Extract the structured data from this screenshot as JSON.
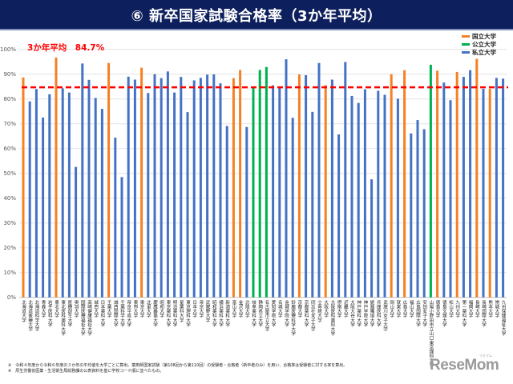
{
  "header": {
    "title": "⑥ 新卒国家試験合格率（3か年平均）"
  },
  "average_label": "3か年平均　84.7%",
  "legend": [
    {
      "name": "国立大学",
      "color": "#f58025"
    },
    {
      "name": "公立大学",
      "color": "#00b050"
    },
    {
      "name": "私立大学",
      "color": "#4472c4"
    }
  ],
  "chart_data": {
    "type": "bar",
    "title": "⑥ 新卒国家試験合格率（3か年平均）",
    "xlabel": "",
    "ylabel": "",
    "ylim": [
      0,
      100
    ],
    "yticks": [
      "0%",
      "10%",
      "20%",
      "30%",
      "40%",
      "50%",
      "60%",
      "70%",
      "80%",
      "90%",
      "100%"
    ],
    "grid": true,
    "legend_position": "top-right",
    "reference_line": {
      "value": 84.7,
      "label": "3か年平均　84.7%",
      "color": "#ff0000",
      "style": "dashed"
    },
    "categories": [
      "北海道大学",
      "北海道医療大学",
      "北海道科学大学",
      "青森大学",
      "岩手医科大学",
      "東北大学",
      "東北医科薬科大学",
      "医療創生大学",
      "奥羽大学",
      "国際医療福祉大学",
      "高崎健康福祉大学",
      "城西大学",
      "日本薬科大学",
      "千葉大学",
      "城西国際大学",
      "千葉科学大学",
      "帝京平成大学",
      "東邦大学",
      "東京大学",
      "北里大学",
      "慶應義塾大学",
      "昭和大学",
      "東京薬科大学",
      "明治薬科大学",
      "星薬科大学",
      "東京理科大学",
      "日本大学",
      "帝京大学",
      "武蔵野大学",
      "昭和薬科大学",
      "横浜薬科大学",
      "新潟薬科大学",
      "富山大学",
      "金沢大学",
      "北陸大学",
      "岐阜薬科大学",
      "静岡県立大学",
      "名古屋市立大学",
      "愛知学院大学",
      "名城大学",
      "金城学院大学",
      "鈴鹿医療科学大学",
      "京都大学",
      "京都薬科大学",
      "同志社女子大学",
      "立命館大学",
      "大阪大学",
      "大阪医科薬科大学",
      "摂南大学",
      "近畿大学",
      "大阪大谷大学",
      "神戸薬科大学",
      "神戸学院大学",
      "姫路獨協大学",
      "兵庫医科大学",
      "武庫川女子大学",
      "岡山大学",
      "就実大学",
      "広島大学",
      "福山大学",
      "広島国際大学",
      "安田女子大学",
      "山陽小野田市立山口東京理科大学",
      "徳島大学",
      "徳島文理大学",
      "松山大学",
      "九州大学",
      "第一薬科大学",
      "福岡大学",
      "長崎大学",
      "長崎国際大学",
      "熊本大学",
      "崇城大学",
      "九州保健福祉大学"
    ],
    "types": [
      "国立",
      "私立",
      "私立",
      "私立",
      "私立",
      "国立",
      "私立",
      "私立",
      "私立",
      "私立",
      "私立",
      "私立",
      "私立",
      "国立",
      "私立",
      "私立",
      "私立",
      "私立",
      "国立",
      "私立",
      "私立",
      "私立",
      "私立",
      "私立",
      "私立",
      "私立",
      "私立",
      "私立",
      "私立",
      "私立",
      "私立",
      "私立",
      "国立",
      "国立",
      "私立",
      "公立",
      "公立",
      "公立",
      "私立",
      "私立",
      "私立",
      "私立",
      "国立",
      "私立",
      "私立",
      "私立",
      "国立",
      "私立",
      "私立",
      "私立",
      "私立",
      "私立",
      "私立",
      "私立",
      "私立",
      "私立",
      "国立",
      "私立",
      "国立",
      "私立",
      "私立",
      "私立",
      "公立",
      "国立",
      "私立",
      "私立",
      "国立",
      "私立",
      "私立",
      "国立",
      "私立",
      "国立",
      "私立",
      "私立"
    ],
    "values": [
      88.7,
      79.0,
      84.0,
      72.5,
      81.9,
      96.7,
      84.3,
      82.6,
      52.6,
      94.3,
      87.7,
      80.4,
      76.0,
      94.5,
      64.4,
      48.5,
      89.0,
      87.8,
      92.6,
      82.4,
      90.0,
      88.4,
      91.1,
      82.6,
      88.9,
      74.7,
      87.5,
      88.5,
      89.8,
      89.9,
      86.3,
      69.1,
      88.4,
      91.7,
      68.7,
      84.9,
      91.7,
      92.9,
      85.5,
      84.9,
      96.0,
      72.4,
      89.9,
      89.6,
      74.8,
      94.5,
      85.6,
      87.8,
      65.7,
      94.9,
      81.2,
      78.4,
      83.9,
      47.6,
      83.3,
      81.7,
      90.0,
      80.1,
      91.6,
      66.1,
      71.5,
      67.8,
      93.8,
      91.4,
      86.6,
      79.5,
      90.9,
      88.9,
      91.6,
      96.2,
      84.1,
      84.1,
      88.5,
      88.2
    ]
  },
  "notes": [
    "※　令和４年度から令和６年度の３か年の平均値を大学ごとに算出。薬剤師国家試験（第108回から第110回）の受験者・合格者（新卒者のみ）を用い、合格率は受験者に対する率を算出。",
    "※　厚生労働省医薬・生活衛生局総務課の公表資料を基に学校コード順に並べたもの。"
  ],
  "logo": {
    "text": "ReseMom",
    "kana": "リセマム"
  }
}
